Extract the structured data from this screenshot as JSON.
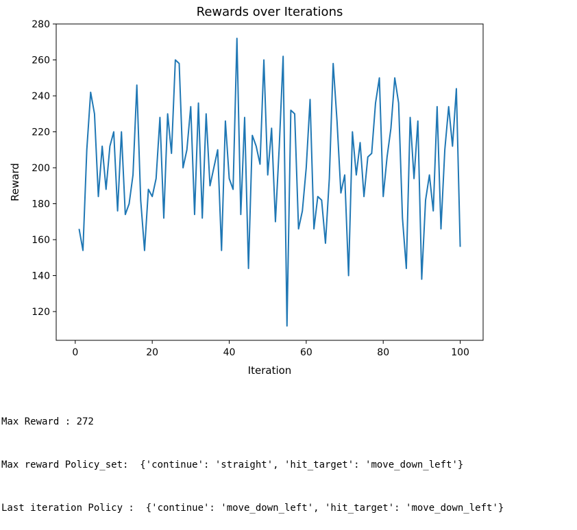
{
  "chart_data": {
    "type": "line",
    "title": "Rewards over Iterations",
    "xlabel": "Iteration",
    "ylabel": "Reward",
    "xlim": [
      -4.95,
      105.95
    ],
    "ylim": [
      104,
      280
    ],
    "xticks": [
      0,
      20,
      40,
      60,
      80,
      100
    ],
    "yticks": [
      120,
      140,
      160,
      180,
      200,
      220,
      240,
      260,
      280
    ],
    "grid": false,
    "line_color": "#1f77b4",
    "series": [
      {
        "x": [
          1,
          2,
          3,
          4,
          5,
          6,
          7,
          8,
          9,
          10,
          11,
          12,
          13,
          14,
          15,
          16,
          17,
          18,
          19,
          20,
          21,
          22,
          23,
          24,
          25,
          26,
          27,
          28,
          29,
          30,
          31,
          32,
          33,
          34,
          35,
          36,
          37,
          38,
          39,
          40,
          41,
          42,
          43,
          44,
          45,
          46,
          47,
          48,
          49,
          50,
          51,
          52,
          53,
          54,
          55,
          56,
          57,
          58,
          59,
          60,
          61,
          62,
          63,
          64,
          65,
          66,
          67,
          68,
          69,
          70,
          71,
          72,
          73,
          74,
          75,
          76,
          77,
          78,
          79,
          80,
          81,
          82,
          83,
          84,
          85,
          86,
          87,
          88,
          89,
          90,
          91,
          92,
          93,
          94,
          95,
          96,
          97,
          98,
          99,
          100
        ],
        "values": [
          166,
          154,
          210,
          242,
          230,
          184,
          212,
          188,
          212,
          220,
          176,
          220,
          174,
          180,
          196,
          246,
          182,
          154,
          188,
          184,
          194,
          228,
          172,
          230,
          208,
          260,
          258,
          200,
          210,
          234,
          174,
          236,
          172,
          230,
          190,
          200,
          210,
          154,
          226,
          194,
          188,
          272,
          174,
          228,
          144,
          218,
          212,
          202,
          260,
          196,
          222,
          170,
          212,
          262,
          112,
          232,
          230,
          166,
          176,
          200,
          238,
          166,
          184,
          182,
          158,
          194,
          258,
          226,
          186,
          196,
          140,
          220,
          196,
          214,
          184,
          206,
          208,
          236,
          250,
          184,
          206,
          222,
          250,
          236,
          172,
          144,
          228,
          194,
          226,
          138,
          182,
          196,
          176,
          234,
          166,
          210,
          234,
          212,
          244,
          156
        ]
      }
    ]
  },
  "output": {
    "lines": [
      "Max Reward : 272",
      "Max reward Policy_set:  {'continue': 'straight', 'hit_target': 'move_down_left'}",
      "Last iteration Policy :  {'continue': 'move_down_left', 'hit_target': 'move_down_left'}"
    ]
  }
}
